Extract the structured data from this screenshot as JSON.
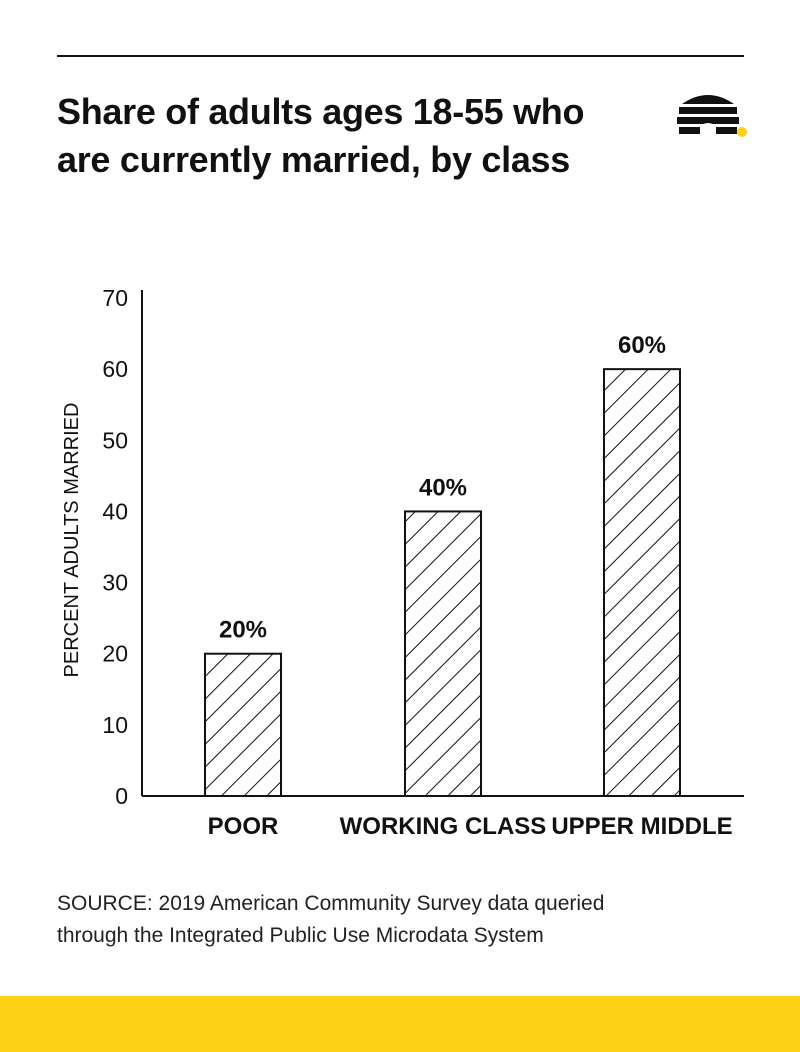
{
  "title": "Share of adults ages 18-55 who are currently married, by class",
  "source_line1": "SOURCE: 2019 American Community Survey data queried",
  "source_line2": "through the Integrated Public Use Microdata System",
  "colors": {
    "accent": "#fcd116",
    "ink": "#111111",
    "bar_fill": "#ffffff"
  },
  "logo_icon": "beehive-icon",
  "chart_data": {
    "type": "bar",
    "title": "Share of adults ages 18-55 who are currently married, by class",
    "categories": [
      "POOR",
      "WORKING CLASS",
      "UPPER MIDDLE"
    ],
    "values": [
      20,
      40,
      60
    ],
    "value_labels": [
      "20%",
      "40%",
      "60%"
    ],
    "ylabel": "PERCENT ADULTS MARRIED",
    "xlabel": "",
    "ylim": [
      0,
      70
    ],
    "yticks": [
      0,
      10,
      20,
      30,
      40,
      50,
      60,
      70
    ],
    "bar_pattern": "diagonal-hatch",
    "grid": false,
    "legend": "none"
  }
}
